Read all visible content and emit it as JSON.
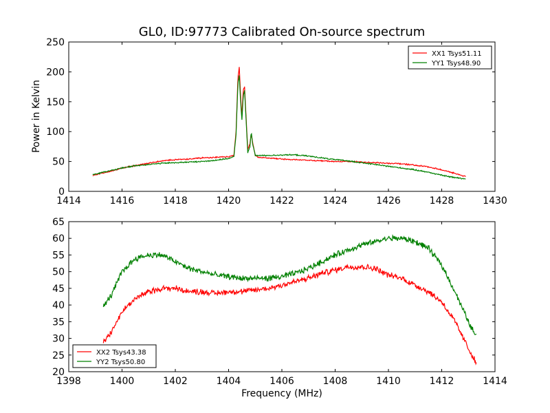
{
  "title": "GL0, ID:97773 Calibrated On-source spectrum",
  "chart_data": [
    {
      "type": "line",
      "ylabel": "Power in Kelvin",
      "xlabel": "",
      "xlim": [
        1414,
        1430
      ],
      "ylim": [
        0,
        250
      ],
      "xticks": [
        1414,
        1416,
        1418,
        1420,
        1422,
        1424,
        1426,
        1428,
        1430
      ],
      "yticks": [
        0,
        50,
        100,
        150,
        200,
        250
      ],
      "legend_position": "upper right",
      "grid": false,
      "series": [
        {
          "name": "XX1 Tsys51.11",
          "color": "#ff0000",
          "noise": 0.8,
          "points": [
            [
              1414.9,
              27
            ],
            [
              1415.5,
              33
            ],
            [
              1416.0,
              39
            ],
            [
              1416.5,
              43
            ],
            [
              1417.0,
              47
            ],
            [
              1417.5,
              51
            ],
            [
              1418.0,
              53
            ],
            [
              1418.5,
              54
            ],
            [
              1419.0,
              56
            ],
            [
              1419.5,
              57
            ],
            [
              1420.0,
              58
            ],
            [
              1420.2,
              60
            ],
            [
              1420.28,
              100
            ],
            [
              1420.35,
              190
            ],
            [
              1420.4,
              209
            ],
            [
              1420.45,
              160
            ],
            [
              1420.5,
              125
            ],
            [
              1420.55,
              170
            ],
            [
              1420.6,
              175
            ],
            [
              1420.65,
              130
            ],
            [
              1420.72,
              70
            ],
            [
              1420.8,
              80
            ],
            [
              1420.85,
              97
            ],
            [
              1420.9,
              82
            ],
            [
              1421.0,
              60
            ],
            [
              1421.1,
              57
            ],
            [
              1421.5,
              56
            ],
            [
              1422.0,
              54
            ],
            [
              1422.5,
              53
            ],
            [
              1423.0,
              52
            ],
            [
              1423.5,
              51
            ],
            [
              1424.0,
              50
            ],
            [
              1424.5,
              50
            ],
            [
              1425.0,
              49
            ],
            [
              1425.5,
              48
            ],
            [
              1426.0,
              47
            ],
            [
              1426.5,
              46
            ],
            [
              1427.0,
              44
            ],
            [
              1427.5,
              41
            ],
            [
              1428.0,
              36
            ],
            [
              1428.5,
              30
            ],
            [
              1428.9,
              25
            ]
          ]
        },
        {
          "name": "YY1 Tsys48.90",
          "color": "#008000",
          "noise": 0.8,
          "points": [
            [
              1414.9,
              28
            ],
            [
              1415.5,
              34
            ],
            [
              1416.0,
              39
            ],
            [
              1416.5,
              43
            ],
            [
              1417.0,
              45
            ],
            [
              1417.5,
              47
            ],
            [
              1418.0,
              48
            ],
            [
              1418.5,
              49
            ],
            [
              1419.0,
              50
            ],
            [
              1419.5,
              52
            ],
            [
              1420.0,
              55
            ],
            [
              1420.2,
              58
            ],
            [
              1420.28,
              95
            ],
            [
              1420.35,
              180
            ],
            [
              1420.4,
              195
            ],
            [
              1420.45,
              150
            ],
            [
              1420.5,
              120
            ],
            [
              1420.55,
              160
            ],
            [
              1420.6,
              168
            ],
            [
              1420.65,
              125
            ],
            [
              1420.72,
              65
            ],
            [
              1420.8,
              75
            ],
            [
              1420.85,
              100
            ],
            [
              1420.9,
              80
            ],
            [
              1421.0,
              60
            ],
            [
              1421.1,
              60
            ],
            [
              1421.5,
              60
            ],
            [
              1422.0,
              61
            ],
            [
              1422.5,
              61
            ],
            [
              1423.0,
              59
            ],
            [
              1423.5,
              56
            ],
            [
              1424.0,
              53
            ],
            [
              1424.5,
              51
            ],
            [
              1425.0,
              48
            ],
            [
              1425.5,
              45
            ],
            [
              1426.0,
              42
            ],
            [
              1426.5,
              39
            ],
            [
              1427.0,
              36
            ],
            [
              1427.5,
              32
            ],
            [
              1428.0,
              27
            ],
            [
              1428.5,
              23
            ],
            [
              1428.9,
              21
            ]
          ]
        }
      ]
    },
    {
      "type": "line",
      "xlabel": "Frequency (MHz)",
      "ylabel": "",
      "xlim": [
        1398,
        1414
      ],
      "ylim": [
        20,
        65
      ],
      "xticks": [
        1398,
        1400,
        1402,
        1404,
        1406,
        1408,
        1410,
        1412,
        1414
      ],
      "yticks": [
        20,
        25,
        30,
        35,
        40,
        45,
        50,
        55,
        60,
        65
      ],
      "legend_position": "lower left",
      "grid": false,
      "series": [
        {
          "name": "XX2 Tsys43.38",
          "color": "#ff0000",
          "noise": 0.7,
          "points": [
            [
              1399.3,
              29
            ],
            [
              1399.6,
              32
            ],
            [
              1400.0,
              38
            ],
            [
              1400.5,
              42
            ],
            [
              1401.0,
              44
            ],
            [
              1401.5,
              45
            ],
            [
              1402.0,
              45
            ],
            [
              1402.5,
              44
            ],
            [
              1403.0,
              44
            ],
            [
              1403.5,
              43.5
            ],
            [
              1404.0,
              44
            ],
            [
              1404.5,
              44
            ],
            [
              1405.0,
              44.5
            ],
            [
              1405.5,
              45
            ],
            [
              1406.0,
              46
            ],
            [
              1406.5,
              47
            ],
            [
              1407.0,
              48
            ],
            [
              1407.5,
              49.5
            ],
            [
              1408.0,
              50.5
            ],
            [
              1408.5,
              51.5
            ],
            [
              1409.0,
              51.5
            ],
            [
              1409.5,
              51
            ],
            [
              1410.0,
              49
            ],
            [
              1410.5,
              48
            ],
            [
              1411.0,
              46
            ],
            [
              1411.5,
              44
            ],
            [
              1412.0,
              41
            ],
            [
              1412.5,
              35
            ],
            [
              1413.0,
              27
            ],
            [
              1413.3,
              22.5
            ]
          ]
        },
        {
          "name": "YY2 Tsys50.80",
          "color": "#008000",
          "noise": 0.7,
          "points": [
            [
              1399.3,
              39.5
            ],
            [
              1399.6,
              43
            ],
            [
              1400.0,
              50
            ],
            [
              1400.5,
              54
            ],
            [
              1401.0,
              55
            ],
            [
              1401.5,
              55
            ],
            [
              1402.0,
              53
            ],
            [
              1402.5,
              51
            ],
            [
              1403.0,
              50
            ],
            [
              1403.5,
              49
            ],
            [
              1404.0,
              48.5
            ],
            [
              1404.5,
              48
            ],
            [
              1405.0,
              48
            ],
            [
              1405.5,
              48
            ],
            [
              1406.0,
              48.5
            ],
            [
              1406.5,
              49.5
            ],
            [
              1407.0,
              51
            ],
            [
              1407.5,
              53
            ],
            [
              1408.0,
              55
            ],
            [
              1408.5,
              56.5
            ],
            [
              1409.0,
              58
            ],
            [
              1409.5,
              59
            ],
            [
              1410.0,
              60
            ],
            [
              1410.5,
              60
            ],
            [
              1411.0,
              59
            ],
            [
              1411.5,
              57
            ],
            [
              1412.0,
              52
            ],
            [
              1412.5,
              44
            ],
            [
              1413.0,
              35
            ],
            [
              1413.3,
              30.5
            ]
          ]
        }
      ]
    }
  ]
}
